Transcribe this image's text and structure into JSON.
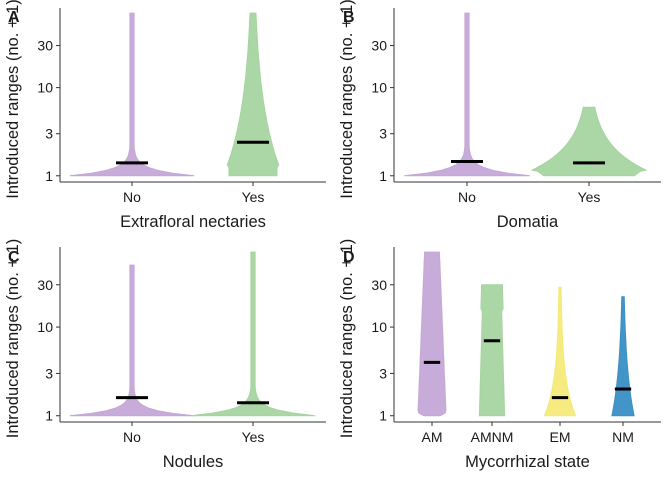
{
  "chart_data": [
    {
      "panel": "A",
      "type": "violin",
      "xlabel": "Extrafloral nectaries",
      "ylabel": "Introduced ranges (no. + 1)",
      "categories": [
        "No",
        "Yes"
      ],
      "colors": [
        "#c4a7d6",
        "#a6d4a0"
      ],
      "medians": [
        1.4,
        2.4
      ],
      "maxima": [
        70,
        70
      ],
      "yscale": "log10",
      "yticks": [
        1,
        3,
        10,
        30
      ],
      "ytick_labels": [
        "1",
        "3",
        "10",
        "30"
      ]
    },
    {
      "panel": "B",
      "type": "violin",
      "xlabel": "Domatia",
      "ylabel": "Introduced ranges (no. + 1)",
      "categories": [
        "No",
        "Yes"
      ],
      "colors": [
        "#c4a7d6",
        "#a6d4a0"
      ],
      "medians": [
        1.45,
        1.4
      ],
      "maxima": [
        70,
        6
      ],
      "yscale": "log10",
      "yticks": [
        1,
        3,
        10,
        30
      ],
      "ytick_labels": [
        "1",
        "3",
        "10",
        "30"
      ]
    },
    {
      "panel": "C",
      "type": "violin",
      "xlabel": "Nodules",
      "ylabel": "Introduced ranges (no. + 1)",
      "categories": [
        "No",
        "Yes"
      ],
      "colors": [
        "#c4a7d6",
        "#a6d4a0"
      ],
      "medians": [
        1.6,
        1.4
      ],
      "maxima": [
        50,
        70
      ],
      "yscale": "log10",
      "yticks": [
        1,
        3,
        10,
        30
      ],
      "ytick_labels": [
        "1",
        "3",
        "10",
        "30"
      ]
    },
    {
      "panel": "D",
      "type": "violin",
      "xlabel": "Mycorrhizal state",
      "ylabel": "Introduced ranges (no. + 1)",
      "categories": [
        "AM",
        "AMNM",
        "EM",
        "NM"
      ],
      "colors": [
        "#c4a7d6",
        "#a6d4a0",
        "#f4ea7a",
        "#3a8fc4"
      ],
      "medians": [
        4,
        7,
        1.6,
        2
      ],
      "maxima": [
        70,
        30,
        28,
        22
      ],
      "yscale": "log10",
      "yticks": [
        1,
        3,
        10,
        30
      ],
      "ytick_labels": [
        "1",
        "3",
        "10",
        "30"
      ]
    }
  ]
}
